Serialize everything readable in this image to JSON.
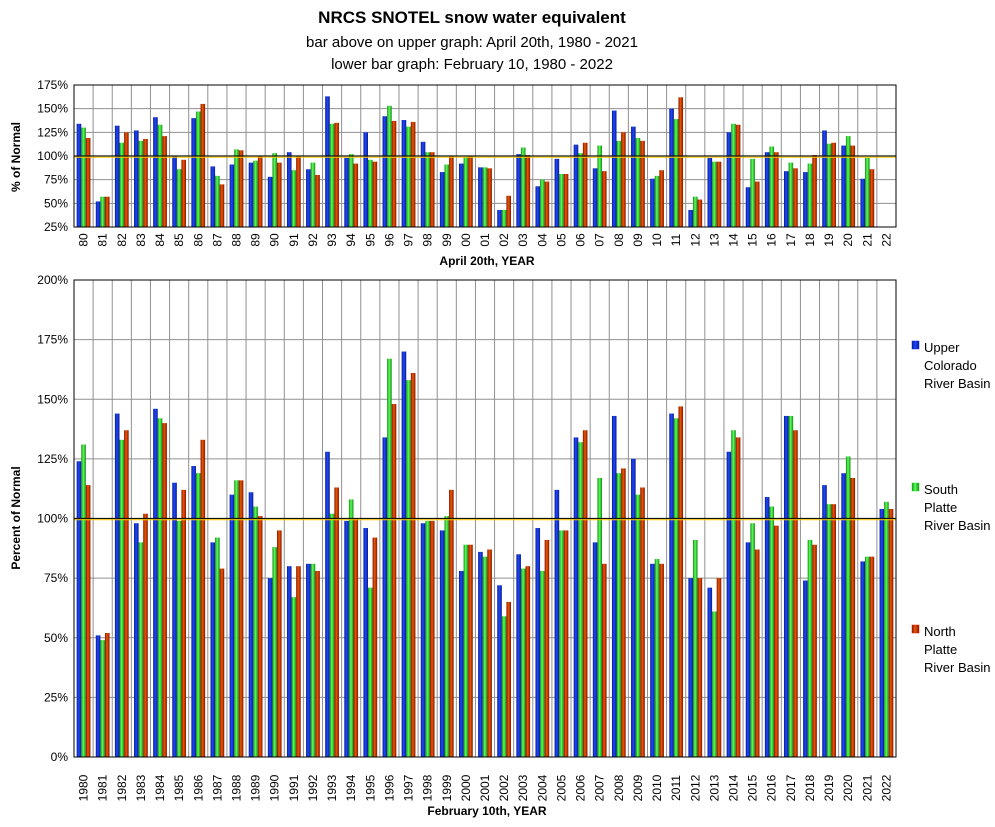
{
  "title": "NRCS SNOTEL snow water equivalent",
  "subtitle1": "bar above on upper graph: April 20th, 1980 - 2021",
  "subtitle2": "lower bar graph: February 10, 1980 - 2022",
  "colors": {
    "upper_colorado": "#0a2ad8",
    "south_platte": "#22e022",
    "north_platte": "#cc2200",
    "grid": "#909090",
    "normal_line": "#ffcc00",
    "frame": "#000000"
  },
  "legend": [
    {
      "lines": [
        "Upper",
        "Colorado",
        "River Basin"
      ],
      "series": "upper_colorado"
    },
    {
      "lines": [
        "South",
        "Platte",
        "River Basin"
      ],
      "series": "south_platte"
    },
    {
      "lines": [
        "North",
        "Platte",
        "River Basin"
      ],
      "series": "north_platte"
    }
  ],
  "chart_data": [
    {
      "type": "bar",
      "id": "april",
      "xlabel": "April 20th, YEAR",
      "ylabel": "% of Normal",
      "ylim": [
        25,
        175
      ],
      "yticks": [
        25,
        50,
        75,
        100,
        125,
        150,
        175
      ],
      "ytick_labels": [
        "25%",
        "50%",
        "75%",
        "100%",
        "125%",
        "150%",
        "175%"
      ],
      "reference_line": 100,
      "categories": [
        "80",
        "81",
        "82",
        "83",
        "84",
        "85",
        "86",
        "87",
        "88",
        "89",
        "90",
        "91",
        "92",
        "93",
        "94",
        "95",
        "96",
        "97",
        "98",
        "99",
        "00",
        "01",
        "02",
        "03",
        "04",
        "05",
        "06",
        "07",
        "08",
        "09",
        "10",
        "11",
        "12",
        "13",
        "14",
        "15",
        "16",
        "17",
        "18",
        "19",
        "20",
        "21",
        "22"
      ],
      "series": [
        {
          "name": "Upper Colorado River Basin",
          "key": "upper_colorado",
          "values": [
            134,
            52,
            132,
            127,
            141,
            100,
            140,
            89,
            91,
            93,
            78,
            104,
            86,
            163,
            98,
            125,
            142,
            138,
            115,
            83,
            92,
            88,
            43,
            102,
            68,
            97,
            112,
            87,
            148,
            131,
            76,
            150,
            43,
            98,
            125,
            67,
            104,
            84,
            83,
            127,
            111,
            76,
            null
          ]
        },
        {
          "name": "South Platte River Basin",
          "key": "south_platte",
          "values": [
            130,
            57,
            114,
            116,
            133,
            86,
            147,
            79,
            107,
            95,
            103,
            85,
            93,
            134,
            102,
            96,
            153,
            131,
            104,
            91,
            99,
            88,
            43,
            109,
            75,
            81,
            103,
            111,
            116,
            119,
            79,
            139,
            57,
            94,
            134,
            97,
            110,
            93,
            92,
            113,
            121,
            98,
            null
          ]
        },
        {
          "name": "North Platte River Basin",
          "key": "north_platte",
          "values": [
            119,
            57,
            125,
            118,
            121,
            96,
            155,
            70,
            106,
            100,
            93,
            100,
            80,
            135,
            92,
            94,
            137,
            136,
            104,
            100,
            100,
            87,
            58,
            101,
            73,
            81,
            114,
            84,
            125,
            116,
            85,
            162,
            54,
            94,
            133,
            73,
            104,
            87,
            101,
            114,
            111,
            86,
            null
          ]
        }
      ]
    },
    {
      "type": "bar",
      "id": "february",
      "xlabel": "February 10th, YEAR",
      "ylabel": "Percent of Normal",
      "ylim": [
        0,
        200
      ],
      "yticks": [
        0,
        25,
        50,
        75,
        100,
        125,
        150,
        175,
        200
      ],
      "ytick_labels": [
        "0%",
        "25%",
        "50%",
        "75%",
        "100%",
        "125%",
        "150%",
        "175%",
        "200%"
      ],
      "reference_line": 100,
      "categories": [
        "1980",
        "1981",
        "1982",
        "1983",
        "1984",
        "1985",
        "1986",
        "1987",
        "1988",
        "1989",
        "1990",
        "1991",
        "1992",
        "1993",
        "1994",
        "1995",
        "1996",
        "1997",
        "1998",
        "1999",
        "2000",
        "2001",
        "2002",
        "2003",
        "2004",
        "2005",
        "2006",
        "2007",
        "2008",
        "2009",
        "2010",
        "2011",
        "2012",
        "2013",
        "2014",
        "2015",
        "2016",
        "2017",
        "2018",
        "2019",
        "2020",
        "2021",
        "2022"
      ],
      "series": [
        {
          "name": "Upper Colorado River Basin",
          "key": "upper_colorado",
          "values": [
            124,
            51,
            144,
            98,
            146,
            115,
            122,
            90,
            110,
            111,
            75,
            80,
            81,
            128,
            99,
            96,
            134,
            170,
            98,
            95,
            78,
            86,
            72,
            85,
            96,
            112,
            134,
            90,
            143,
            125,
            81,
            144,
            75,
            71,
            128,
            90,
            109,
            143,
            74,
            114,
            119,
            82,
            104
          ]
        },
        {
          "name": "South Platte River Basin",
          "key": "south_platte",
          "values": [
            131,
            49,
            133,
            90,
            142,
            99,
            119,
            92,
            116,
            105,
            88,
            67,
            81,
            102,
            108,
            71,
            167,
            158,
            99,
            101,
            89,
            84,
            59,
            79,
            78,
            95,
            132,
            117,
            119,
            110,
            83,
            142,
            91,
            61,
            137,
            98,
            105,
            143,
            91,
            106,
            126,
            84,
            107
          ]
        },
        {
          "name": "North Platte River Basin",
          "key": "north_platte",
          "values": [
            114,
            52,
            137,
            102,
            140,
            112,
            133,
            79,
            116,
            101,
            95,
            80,
            78,
            113,
            100,
            92,
            148,
            161,
            99,
            112,
            89,
            87,
            65,
            80,
            91,
            95,
            137,
            81,
            121,
            113,
            81,
            147,
            75,
            75,
            134,
            87,
            97,
            137,
            89,
            106,
            117,
            84,
            104
          ]
        }
      ]
    }
  ]
}
